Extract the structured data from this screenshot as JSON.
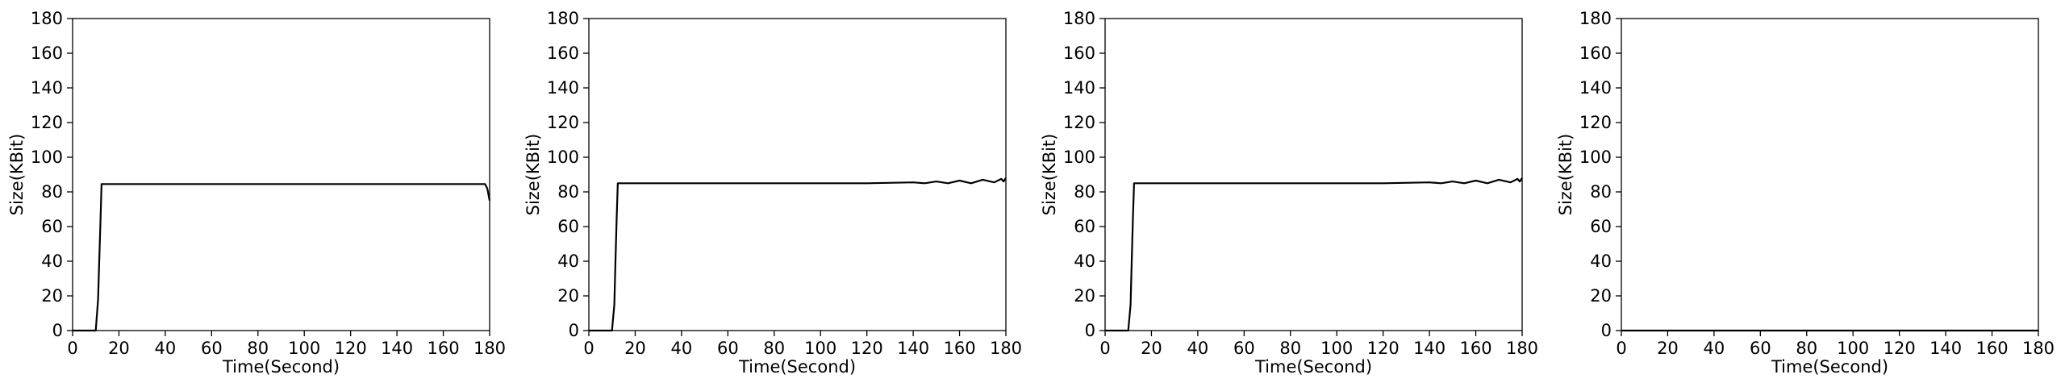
{
  "chart_data": [
    {
      "type": "line",
      "xlabel": "Time(Second)",
      "ylabel": "Size(KBit)",
      "xlim": [
        0,
        180
      ],
      "ylim": [
        0,
        180
      ],
      "xticks": [
        0,
        20,
        40,
        60,
        80,
        100,
        120,
        140,
        160,
        180
      ],
      "yticks": [
        0,
        20,
        40,
        60,
        80,
        100,
        120,
        140,
        160,
        180
      ],
      "grid": false,
      "series": [
        {
          "color": "#000000",
          "x": [
            0,
            2,
            4,
            6,
            8,
            10,
            11,
            11.5,
            12,
            12.5,
            15,
            30,
            60,
            90,
            120,
            150,
            170,
            178,
            179,
            180
          ],
          "y": [
            0,
            0,
            0,
            0,
            0,
            0,
            18,
            40,
            62,
            84.5,
            84.5,
            84.5,
            84.5,
            84.5,
            84.5,
            84.5,
            84.5,
            84.5,
            82,
            75
          ]
        }
      ]
    },
    {
      "type": "line",
      "xlabel": "Time(Second)",
      "ylabel": "Size(KBit)",
      "xlim": [
        0,
        180
      ],
      "ylim": [
        0,
        180
      ],
      "xticks": [
        0,
        20,
        40,
        60,
        80,
        100,
        120,
        140,
        160,
        180
      ],
      "yticks": [
        0,
        20,
        40,
        60,
        80,
        100,
        120,
        140,
        160,
        180
      ],
      "grid": false,
      "series": [
        {
          "color": "#000000",
          "x": [
            0,
            5,
            10,
            11,
            11.5,
            12,
            12.5,
            20,
            40,
            60,
            80,
            100,
            120,
            140,
            145,
            150,
            155,
            160,
            165,
            170,
            175,
            178,
            179,
            180
          ],
          "y": [
            0,
            0,
            0,
            15,
            40,
            65,
            85,
            85,
            85,
            85,
            85,
            85,
            85,
            85.5,
            85,
            86,
            85,
            86.5,
            85,
            87,
            85.5,
            87.5,
            86,
            88
          ]
        }
      ]
    },
    {
      "type": "line",
      "xlabel": "Time(Second)",
      "ylabel": "Size(KBit)",
      "xlim": [
        0,
        180
      ],
      "ylim": [
        0,
        180
      ],
      "xticks": [
        0,
        20,
        40,
        60,
        80,
        100,
        120,
        140,
        160,
        180
      ],
      "yticks": [
        0,
        20,
        40,
        60,
        80,
        100,
        120,
        140,
        160,
        180
      ],
      "grid": false,
      "series": [
        {
          "color": "#000000",
          "x": [
            0,
            5,
            10,
            11,
            11.5,
            12,
            12.5,
            20,
            40,
            60,
            80,
            100,
            120,
            140,
            145,
            150,
            155,
            160,
            165,
            170,
            175,
            178,
            179,
            180
          ],
          "y": [
            0,
            0,
            0,
            15,
            40,
            65,
            85,
            85,
            85,
            85,
            85,
            85,
            85,
            85.5,
            85,
            86,
            85,
            86.5,
            85,
            87,
            85.5,
            87.5,
            86,
            88
          ]
        }
      ]
    },
    {
      "type": "line",
      "xlabel": "Time(Second)",
      "ylabel": "Size(KBit)",
      "xlim": [
        0,
        180
      ],
      "ylim": [
        0,
        180
      ],
      "xticks": [
        0,
        20,
        40,
        60,
        80,
        100,
        120,
        140,
        160,
        180
      ],
      "yticks": [
        0,
        20,
        40,
        60,
        80,
        100,
        120,
        140,
        160,
        180
      ],
      "grid": false,
      "series": [
        {
          "color": "#000000",
          "x": [
            0,
            180
          ],
          "y": [
            0,
            0
          ]
        }
      ]
    }
  ]
}
